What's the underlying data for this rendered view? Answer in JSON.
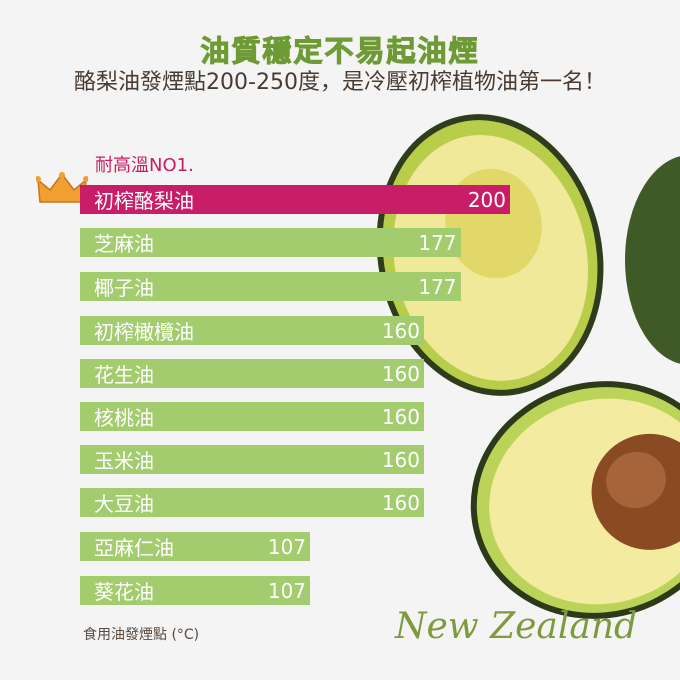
{
  "title": "油質穩定不易起油煙",
  "subtitle": "酪梨油發煙點200-250度，是冷壓初榨植物油第一名！",
  "badge": "耐高溫NO1.",
  "brand": "New Zealand",
  "colors": {
    "highlight": "#c81d67",
    "bar": "#a3cc6e",
    "title": "#7aa83f"
  },
  "chart_data": {
    "type": "bar",
    "orientation": "horizontal",
    "title": "",
    "xlabel": "食用油發煙點 (°C)",
    "categories": [
      "初榨酪梨油",
      "芝麻油",
      "椰子油",
      "初榨橄欖油",
      "花生油",
      "核桃油",
      "玉米油",
      "大豆油",
      "亞麻仁油",
      "葵花油"
    ],
    "values": [
      200,
      177,
      177,
      160,
      160,
      160,
      160,
      160,
      107,
      107
    ],
    "highlight_index": 0,
    "xlim": [
      0,
      200
    ],
    "grid": false
  }
}
